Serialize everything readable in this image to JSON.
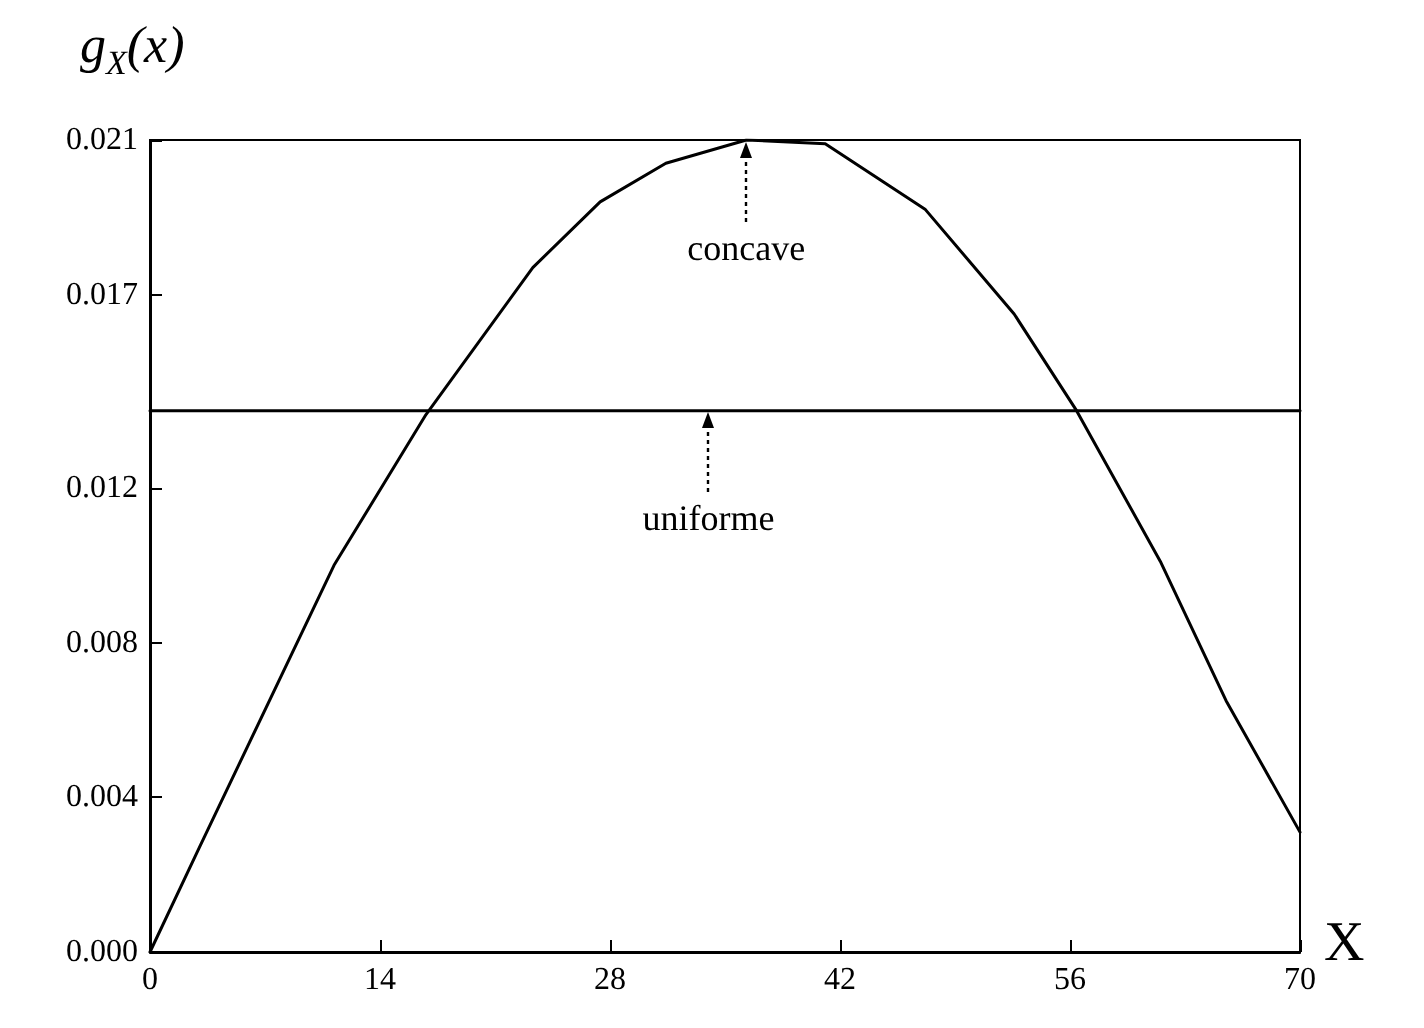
{
  "chart_data": {
    "type": "line",
    "xlabel": "X",
    "ylabel": "g$_{X}$(x)",
    "xlim": [
      0,
      70
    ],
    "xticks": [
      0,
      14,
      28,
      42,
      56,
      70
    ],
    "ylim": [
      0,
      0.021
    ],
    "yticks": [
      {
        "value": 0,
        "label": "0.000"
      },
      {
        "value": 0.004,
        "label": "0.004"
      },
      {
        "value": 0.008,
        "label": "0.008"
      },
      {
        "value": 0.012,
        "label": "0.012"
      },
      {
        "value": 0.017,
        "label": "0.017"
      },
      0.021
    ],
    "grid": false,
    "marker": "none",
    "line_style": "solid",
    "series": [
      {
        "color": "#000000",
        "x": [
          0,
          3,
          11.2,
          16.8,
          23.3,
          27.4,
          31.4,
          36.3,
          41.1,
          47.2,
          52.6,
          56.4,
          61.5,
          65.5,
          70
        ],
        "values": [
          0,
          0.0027,
          0.01,
          0.0139,
          0.0177,
          0.0194,
          0.0204,
          0.021,
          0.0209,
          0.0192,
          0.0165,
          0.014,
          0.0101,
          0.0065,
          0.0031
        ]
      },
      {
        "color": "#000000",
        "x": [
          0,
          70
        ],
        "values": [
          0.014,
          0.014
        ]
      }
    ],
    "annotations": [
      {
        "text": "concave",
        "x": 36.3,
        "y": 0.021
      },
      {
        "text": "uniforme",
        "x": 34,
        "y": 0.014
      }
    ]
  }
}
